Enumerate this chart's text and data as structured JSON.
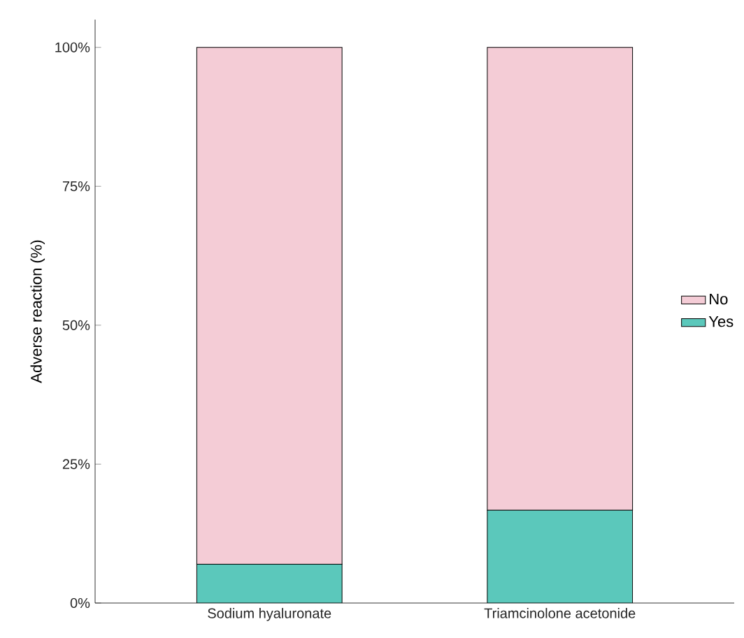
{
  "chart_data": {
    "type": "bar",
    "stacked": true,
    "ylabel": "Adverse reaction (%)",
    "categories": [
      "Sodium hyaluronate",
      "Triamcinolone acetonide"
    ],
    "series": [
      {
        "name": "Yes",
        "color": "#5bc8bb",
        "values": [
          7,
          16.7
        ]
      },
      {
        "name": "No",
        "color": "#f4ccd6",
        "values": [
          93,
          83.3
        ]
      }
    ],
    "ylim": [
      0,
      105
    ],
    "yticks": [
      {
        "value": 0,
        "label": "0%"
      },
      {
        "value": 25,
        "label": "25%"
      },
      {
        "value": 50,
        "label": "50%"
      },
      {
        "value": 75,
        "label": "75%"
      },
      {
        "value": 100,
        "label": "100%"
      }
    ],
    "legend": "right",
    "grid": false
  }
}
